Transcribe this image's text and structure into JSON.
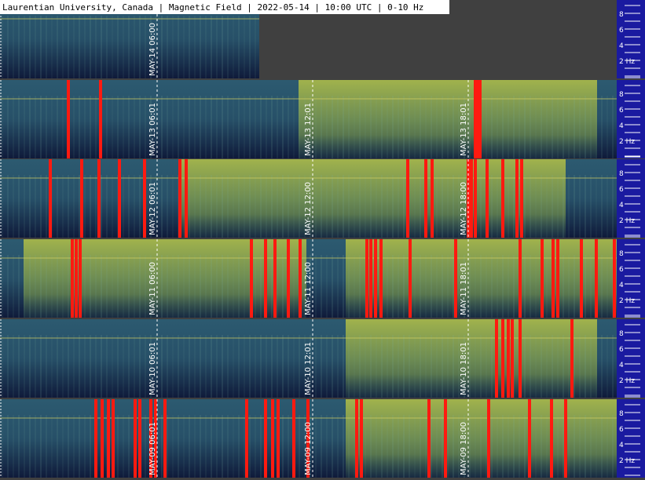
{
  "title": "Laurentian University, Canada | Magnetic Field | 2022-05-14 | 10:00 UTC | 0-10 Hz",
  "freq_labels": [
    "8",
    "6",
    "4",
    "2 Hz"
  ],
  "rows": [
    {
      "markers": [
        "MAY-14 06:00"
      ]
    },
    {
      "markers": [
        "MAY-13 06:01",
        "MAY-13 12:01",
        "MAY-13 18:01"
      ]
    },
    {
      "markers": [
        "MAY-12 06:01",
        "MAY-12 12:00",
        "MAY-12 18:00"
      ]
    },
    {
      "markers": [
        "MAY-11 06:00",
        "MAY-11 12:00",
        "MAY-11 18:01"
      ]
    },
    {
      "markers": [
        "MAY-10 06:01",
        "MAY-10 12:01",
        "MAY-10 18:01"
      ]
    },
    {
      "markers": [
        "MAY-09 06:01",
        "MAY-09 12:00",
        "MAY-09 18:00"
      ]
    }
  ]
}
